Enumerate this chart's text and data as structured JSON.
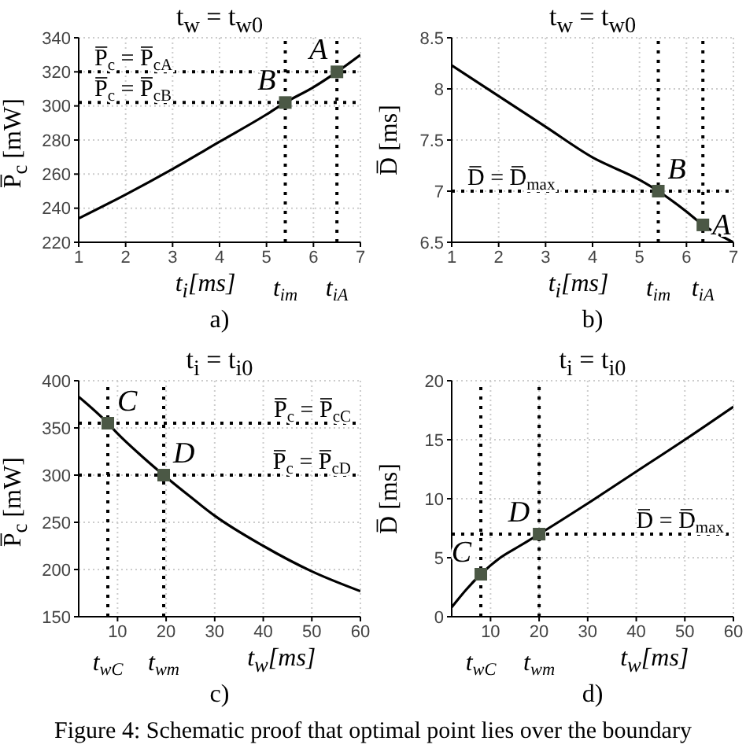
{
  "chart_data": [
    {
      "type": "line",
      "title": "t$_{w}$ = t$_{w0}$",
      "xlabel": "t$_{i}$[ms]",
      "ylabel": "P̅$_{c}$ [mW]",
      "xlim": [
        1,
        7
      ],
      "xticks": [
        1,
        2,
        3,
        4,
        5,
        6,
        7
      ],
      "ylim": [
        220,
        340
      ],
      "yticks": [
        220,
        240,
        260,
        280,
        300,
        320,
        340
      ],
      "grid": true,
      "series": [
        {
          "type": "line",
          "color": "#000000",
          "marker": "none",
          "x": [
            1,
            2,
            3,
            4,
            5,
            5.4,
            6,
            6.5,
            7
          ],
          "values": [
            234,
            248,
            263,
            279,
            295,
            302,
            311,
            320,
            330
          ]
        },
        {
          "type": "scatter",
          "color": "#4b5845",
          "marker": "square",
          "x": [
            5.4,
            6.5
          ],
          "values": [
            302,
            320
          ]
        }
      ],
      "ref_lines": [
        {
          "axis": "y",
          "value": 320,
          "label": "P̅$_{c}$ = P̅$_{cA}$",
          "color": "#000000",
          "line_style": "dotted"
        },
        {
          "axis": "y",
          "value": 302,
          "label": "P̅$_{c}$ = P̅$_{cB}$",
          "color": "#000000",
          "line_style": "dotted"
        },
        {
          "axis": "x",
          "value": 5.4,
          "label": "t$_{im}$",
          "color": "#000000",
          "line_style": "dotted"
        },
        {
          "axis": "x",
          "value": 6.5,
          "label": "t$_{iA}$",
          "color": "#000000",
          "line_style": "dotted"
        }
      ],
      "annotations": [
        {
          "text": "A",
          "x": 6.5,
          "y": 320
        },
        {
          "text": "B",
          "x": 5.4,
          "y": 302
        },
        "a)"
      ]
    },
    {
      "type": "line",
      "title": "t$_{w}$ = t$_{w0}$",
      "xlabel": "t$_{i}$[ms]",
      "ylabel": "D̅ [ms]",
      "xlim": [
        1,
        7
      ],
      "xticks": [
        1,
        2,
        3,
        4,
        5,
        6,
        7
      ],
      "ylim": [
        6.5,
        8.5
      ],
      "yticks": [
        6.5,
        7,
        7.5,
        8,
        8.5
      ],
      "grid": true,
      "series": [
        {
          "type": "line",
          "color": "#000000",
          "marker": "none",
          "x": [
            1,
            2,
            3,
            4,
            5,
            5.4,
            6,
            6.35,
            7
          ],
          "values": [
            8.23,
            7.93,
            7.63,
            7.33,
            7.11,
            7.0,
            6.8,
            6.67,
            6.5
          ]
        },
        {
          "type": "scatter",
          "color": "#4b5845",
          "marker": "square",
          "x": [
            5.4,
            6.35
          ],
          "values": [
            7.0,
            6.67
          ]
        }
      ],
      "ref_lines": [
        {
          "axis": "y",
          "value": 7,
          "label": "D̅ = D̅$_{max}$",
          "color": "#000000",
          "line_style": "dotted"
        },
        {
          "axis": "x",
          "value": 5.4,
          "label": "t$_{im}$",
          "color": "#000000",
          "line_style": "dotted"
        },
        {
          "axis": "x",
          "value": 6.35,
          "label": "t$_{iA}$",
          "color": "#000000",
          "line_style": "dotted"
        }
      ],
      "annotations": [
        {
          "text": "B",
          "x": 5.4,
          "y": 7.0
        },
        {
          "text": "A",
          "x": 6.35,
          "y": 6.67
        },
        "b)"
      ]
    },
    {
      "type": "line",
      "title": "t$_{i}$ = t$_{i0}$",
      "xlabel": "t$_{w}$[ms]",
      "ylabel": "P̅$_{c}$ [mW]",
      "xlim": [
        2,
        60
      ],
      "xticks": [
        10,
        20,
        30,
        40,
        50,
        60
      ],
      "ylim": [
        150,
        400
      ],
      "yticks": [
        150,
        200,
        250,
        300,
        350,
        400
      ],
      "grid": true,
      "series": [
        {
          "type": "line",
          "color": "#000000",
          "marker": "none",
          "x": [
            2,
            8,
            10,
            15,
            19.5,
            25,
            30,
            40,
            50,
            60
          ],
          "values": [
            383,
            355,
            344,
            320,
            300,
            277,
            257,
            225,
            198,
            177
          ]
        },
        {
          "type": "scatter",
          "color": "#4b5845",
          "marker": "square",
          "x": [
            8,
            19.5
          ],
          "values": [
            355,
            300
          ]
        }
      ],
      "ref_lines": [
        {
          "axis": "y",
          "value": 355,
          "label": "P̅$_{c}$ = P̅$_{cC}$",
          "color": "#000000",
          "line_style": "dotted"
        },
        {
          "axis": "y",
          "value": 300,
          "label": "P̅$_{c}$ = P̅$_{cD}$",
          "color": "#000000",
          "line_style": "dotted"
        },
        {
          "axis": "x",
          "value": 8,
          "label": "t$_{wC}$",
          "color": "#000000",
          "line_style": "dotted"
        },
        {
          "axis": "x",
          "value": 19.5,
          "label": "t$_{wm}$",
          "color": "#000000",
          "line_style": "dotted"
        }
      ],
      "annotations": [
        {
          "text": "C",
          "x": 8,
          "y": 355
        },
        {
          "text": "D",
          "x": 19.5,
          "y": 300
        },
        "c)"
      ]
    },
    {
      "type": "line",
      "title": "t$_{i}$ = t$_{i0}$",
      "xlabel": "t$_{w}$[ms]",
      "ylabel": "D̅ [ms]",
      "xlim": [
        2,
        60
      ],
      "xticks": [
        10,
        20,
        30,
        40,
        50,
        60
      ],
      "ylim": [
        0,
        20
      ],
      "yticks": [
        0,
        5,
        10,
        15,
        20
      ],
      "grid": true,
      "series": [
        {
          "type": "line",
          "color": "#000000",
          "marker": "none",
          "x": [
            2,
            5,
            8,
            12,
            16,
            20,
            30,
            40,
            50,
            60
          ],
          "values": [
            0.8,
            2.3,
            3.6,
            5,
            6,
            7,
            9.6,
            12.3,
            15,
            17.8
          ]
        },
        {
          "type": "scatter",
          "color": "#4b5845",
          "marker": "square",
          "x": [
            8,
            20
          ],
          "values": [
            3.6,
            7
          ]
        }
      ],
      "ref_lines": [
        {
          "axis": "y",
          "value": 7,
          "label": "D̅ = D̅$_{max}$",
          "color": "#000000",
          "line_style": "dotted"
        },
        {
          "axis": "x",
          "value": 8,
          "label": "t$_{wC}$",
          "color": "#000000",
          "line_style": "dotted"
        },
        {
          "axis": "x",
          "value": 20,
          "label": "t$_{wm}$",
          "color": "#000000",
          "line_style": "dotted"
        }
      ],
      "annotations": [
        {
          "text": "C",
          "x": 8,
          "y": 3.6
        },
        {
          "text": "D",
          "x": 20,
          "y": 7
        },
        "d)",
        "Figure 4: Schematic proof that optimal point lies over the boundary"
      ]
    }
  ]
}
